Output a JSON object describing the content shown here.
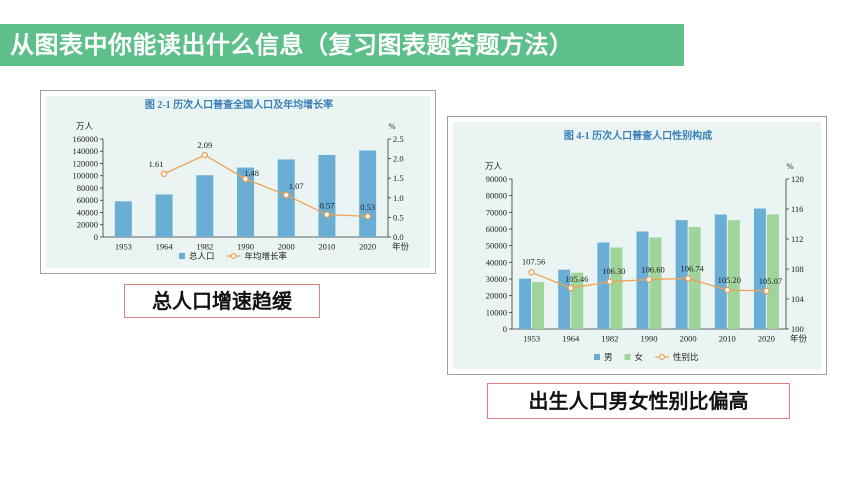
{
  "header": {
    "title": "从图表中你能读出什么信息（复习图表题答题方法）"
  },
  "captions": {
    "left": "总人口增速趋缓",
    "right": "出生人口男女性别比偏高"
  },
  "colors": {
    "header_bg": "#5fbf8a",
    "bar_blue": "#6aaed6",
    "bar_green": "#9fd49a",
    "line_orange": "#f0a050",
    "title_blue": "#3b7fb6"
  },
  "chart_data": [
    {
      "type": "bar",
      "title": "图 2-1  历次人口普查全国人口及年均增长率",
      "categories": [
        "1953",
        "1964",
        "1982",
        "1990",
        "2000",
        "2010",
        "2020"
      ],
      "x_unit": "年份",
      "ylabel_left": "万人",
      "ylabel_right": "%",
      "ylim_left": [
        0,
        160000
      ],
      "yticks_left": [
        "0",
        "20000",
        "40000",
        "60000",
        "80000",
        "100000",
        "120000",
        "140000",
        "160000"
      ],
      "ylim_right": [
        0,
        2.5
      ],
      "yticks_right": [
        "0.0",
        "0.5",
        "1.0",
        "1.5",
        "2.0",
        "2.5"
      ],
      "series": [
        {
          "name": "总人口",
          "kind": "bar",
          "axis": "left",
          "color": "#6aaed6",
          "values": [
            58260,
            69458,
            100818,
            113368,
            126583,
            133972,
            141178
          ]
        },
        {
          "name": "年均增长率",
          "kind": "line",
          "axis": "right",
          "color": "#f0a050",
          "values": [
            null,
            1.61,
            2.09,
            1.48,
            1.07,
            0.57,
            0.53
          ],
          "labels": [
            "",
            "1.61",
            "2.09",
            "1.48",
            "1.07",
            "0.57",
            "0.53"
          ]
        }
      ],
      "legend": "bottom"
    },
    {
      "type": "bar",
      "title": "图 4-1  历次人口普查人口性别构成",
      "categories": [
        "1953",
        "1964",
        "1982",
        "1990",
        "2000",
        "2010",
        "2020"
      ],
      "x_unit": "年份",
      "ylabel_left": "万人",
      "ylabel_right": "%",
      "ylim_left": [
        0,
        90000
      ],
      "yticks_left": [
        "0",
        "10000",
        "20000",
        "30000",
        "40000",
        "50000",
        "60000",
        "70000",
        "80000",
        "90000"
      ],
      "ylim_right": [
        100,
        120
      ],
      "yticks_right": [
        "100",
        "104",
        "108",
        "112",
        "116",
        "120"
      ],
      "series": [
        {
          "name": "男",
          "kind": "bar",
          "axis": "left",
          "color": "#6aaed6",
          "values": [
            30200,
            35600,
            51900,
            58500,
            65300,
            68700,
            72300
          ]
        },
        {
          "name": "女",
          "kind": "bar",
          "axis": "left",
          "color": "#9fd49a",
          "values": [
            28100,
            33800,
            48900,
            54900,
            61200,
            65300,
            68800
          ]
        },
        {
          "name": "性别比",
          "kind": "line",
          "axis": "right",
          "color": "#f0a050",
          "values": [
            107.56,
            105.46,
            106.3,
            106.6,
            106.74,
            105.2,
            105.07
          ],
          "labels": [
            "107.56",
            "105.46",
            "106.30",
            "106.60",
            "106.74",
            "105.20",
            "105.07"
          ]
        }
      ],
      "legend": "bottom"
    }
  ]
}
